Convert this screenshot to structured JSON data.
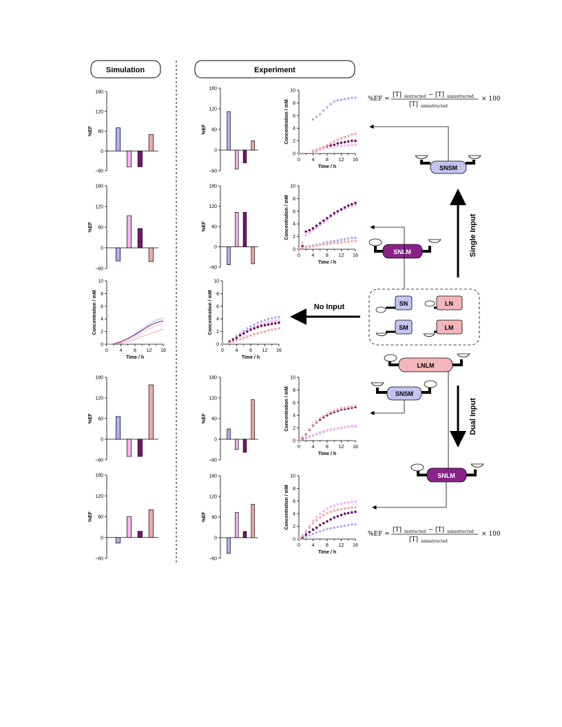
{
  "headers": {
    "simulation": "Simulation",
    "experiment": "Experiment"
  },
  "colors": {
    "SN": "#b8b8ee",
    "LN": "#f4b6ba",
    "SM": "#b8b8ee",
    "LM": "#f4b6ba",
    "SNSM": "#c4c4f0",
    "SNLM": "#8a2389",
    "LNLM": "#f4b6ba",
    "bar_SN": "#b0b0ea",
    "bar_LN": "#f6b4ee",
    "bar_SM": "#7b1474",
    "bar_LM": "#f2a8a8",
    "line_SN": "#b0b0ea",
    "line_LN": "#f6b4ee",
    "line_SM": "#6a0f66",
    "line_LM": "#f2a8a8"
  },
  "axis_labels": {
    "ef": "%EF",
    "conc": "Concentration / mM",
    "time": "Time / h"
  },
  "ef_ticks": [
    "180",
    "120",
    "60",
    "0",
    "−60"
  ],
  "conc_ticks": [
    "10",
    "8",
    "6",
    "4",
    "2",
    "0"
  ],
  "time_ticks": [
    "0",
    "4",
    "8",
    "12",
    "16"
  ],
  "scheme": {
    "inputs": {
      "single": "Single Input",
      "none": "No Input",
      "dual": "Dual Input"
    },
    "species": {
      "SN": "SN",
      "LN": "LN",
      "SM": "SM",
      "LM": "LM"
    },
    "complexes": {
      "snsm_top": "SNSM",
      "snlm_mid": "SNLM",
      "lnlm": "LNLM",
      "snsm_low": "SNSM",
      "snlm_bot": "SNLM"
    },
    "equation": {
      "lhs": "%EF =",
      "num_a": "[T]",
      "sub_instructed": "instructed",
      "minus": "−",
      "num_b": "[T]",
      "sub_uninstructed": "uninstructed",
      "den": "[T]",
      "times": "× 100"
    }
  },
  "chart_data": [
    {
      "id": "sim_ef_row1",
      "type": "bar",
      "categories": [
        "SN",
        "LN",
        "SM",
        "LM"
      ],
      "values": [
        70,
        -48,
        -48,
        50
      ],
      "ylim": [
        -60,
        180
      ],
      "ylabel": "%EF"
    },
    {
      "id": "sim_ef_row2",
      "type": "bar",
      "categories": [
        "SN",
        "LN",
        "SM",
        "LM"
      ],
      "values": [
        -38,
        93,
        56,
        -40
      ],
      "ylim": [
        -60,
        180
      ],
      "ylabel": "%EF"
    },
    {
      "id": "sim_conc_row3",
      "type": "line",
      "xlim": [
        0,
        16
      ],
      "ylim": [
        0,
        10
      ],
      "xlabel": "Time / h",
      "ylabel": "Concentration / mM",
      "x": [
        0,
        2,
        4,
        6,
        8,
        10,
        12,
        14,
        16
      ],
      "series": [
        {
          "name": "SN",
          "values": [
            0,
            0.1,
            0.4,
            0.9,
            1.6,
            2.4,
            3.2,
            3.8,
            4.1
          ]
        },
        {
          "name": "LN",
          "values": [
            0,
            0.1,
            0.3,
            0.7,
            1.2,
            1.8,
            2.4,
            2.9,
            3.2
          ]
        },
        {
          "name": "SM",
          "values": [
            0,
            0.1,
            0.4,
            0.9,
            1.5,
            2.2,
            2.9,
            3.4,
            3.7
          ]
        },
        {
          "name": "LM",
          "values": [
            0,
            0.1,
            0.2,
            0.4,
            0.8,
            1.2,
            1.6,
            2.0,
            2.4
          ]
        }
      ]
    },
    {
      "id": "sim_ef_row4",
      "type": "bar",
      "categories": [
        "SN",
        "LN",
        "SM",
        "LM"
      ],
      "values": [
        66,
        -50,
        -50,
        158
      ],
      "ylim": [
        -60,
        180
      ],
      "ylabel": "%EF"
    },
    {
      "id": "sim_ef_row5",
      "type": "bar",
      "categories": [
        "SN",
        "LN",
        "SM",
        "LM"
      ],
      "values": [
        -16,
        60,
        18,
        80
      ],
      "ylim": [
        -60,
        180
      ],
      "ylabel": "%EF"
    },
    {
      "id": "exp_ef_row1",
      "type": "bar",
      "categories": [
        "SN",
        "LN",
        "SM",
        "LM"
      ],
      "values": [
        112,
        -55,
        -37,
        27
      ],
      "ylim": [
        -60,
        180
      ],
      "ylabel": "%EF"
    },
    {
      "id": "exp_ef_row2",
      "type": "bar",
      "categories": [
        "SN",
        "LN",
        "SM",
        "LM"
      ],
      "values": [
        -53,
        102,
        102,
        -50
      ],
      "ylim": [
        -60,
        180
      ],
      "ylabel": "%EF"
    },
    {
      "id": "exp_ef_row4",
      "type": "bar",
      "categories": [
        "SN",
        "LN",
        "SM",
        "LM"
      ],
      "values": [
        30,
        -30,
        -38,
        115
      ],
      "ylim": [
        -60,
        180
      ],
      "ylabel": "%EF"
    },
    {
      "id": "exp_ef_row5",
      "type": "bar",
      "categories": [
        "SN",
        "LN",
        "SM",
        "LM"
      ],
      "values": [
        -46,
        73,
        18,
        97
      ],
      "ylim": [
        -60,
        180
      ],
      "ylabel": "%EF"
    },
    {
      "id": "exp_conc_row1",
      "type": "scatter",
      "xlim": [
        0,
        16
      ],
      "ylim": [
        0,
        10
      ],
      "xlabel": "Time / h",
      "ylabel": "Concentration / mM",
      "x": [
        0,
        4,
        5,
        6,
        7,
        8,
        9,
        10,
        11,
        12,
        13,
        14,
        15,
        16
      ],
      "series": [
        {
          "name": "SN",
          "values": [
            0.1,
            5.4,
            5.8,
            6.2,
            6.8,
            7.3,
            7.8,
            8.2,
            8.4,
            8.5,
            8.6,
            8.7,
            8.8,
            8.8
          ]
        },
        {
          "name": "LN",
          "values": [
            0.1,
            0.2,
            0.4,
            0.6,
            0.8,
            0.9,
            1.0,
            1.1,
            1.2,
            1.2,
            1.3,
            1.3,
            1.4,
            1.4
          ]
        },
        {
          "name": "SM",
          "values": [
            0.1,
            0.4,
            0.6,
            0.8,
            1.0,
            1.2,
            1.3,
            1.4,
            1.6,
            1.7,
            1.8,
            1.9,
            2.0,
            2.0
          ]
        },
        {
          "name": "LM",
          "values": [
            0.1,
            0.4,
            0.6,
            0.8,
            1.0,
            1.3,
            1.6,
            1.9,
            2.2,
            2.4,
            2.6,
            2.8,
            3.0,
            3.1
          ]
        }
      ]
    },
    {
      "id": "exp_conc_row2",
      "type": "scatter",
      "xlim": [
        0,
        16
      ],
      "ylim": [
        0,
        10
      ],
      "xlabel": "Time / h",
      "ylabel": "Concentration / mM",
      "x": [
        0,
        1,
        2,
        3,
        4,
        5,
        6,
        7,
        8,
        9,
        10,
        11,
        12,
        13,
        14,
        15,
        16
      ],
      "series": [
        {
          "name": "SN",
          "values": [
            0.1,
            0.3,
            0.4,
            0.5,
            0.6,
            0.7,
            0.8,
            1.0,
            1.1,
            1.2,
            1.3,
            1.4,
            1.5,
            1.6,
            1.7,
            1.8,
            1.8
          ]
        },
        {
          "name": "LN",
          "values": [
            0.1,
            1.0,
            2.2,
            2.6,
            3.0,
            3.4,
            3.8,
            4.2,
            4.6,
            5.0,
            5.4,
            5.8,
            6.1,
            6.4,
            6.6,
            6.8,
            7.0
          ]
        },
        {
          "name": "SM",
          "values": [
            0.1,
            0.5,
            2.8,
            3.0,
            3.3,
            3.7,
            4.1,
            4.5,
            4.9,
            5.3,
            5.7,
            6.0,
            6.3,
            6.6,
            6.9,
            7.1,
            7.3
          ]
        },
        {
          "name": "LM",
          "values": [
            0.1,
            0.2,
            0.3,
            0.4,
            0.5,
            0.6,
            0.7,
            0.8,
            0.8,
            0.9,
            1.0,
            1.0,
            1.1,
            1.2,
            1.2,
            1.3,
            1.3
          ]
        }
      ]
    },
    {
      "id": "exp_conc_row3",
      "type": "scatter",
      "xlim": [
        0,
        16
      ],
      "ylim": [
        0,
        10
      ],
      "xlabel": "Time / h",
      "ylabel": "Concentration / mM",
      "x": [
        0,
        2,
        3,
        4,
        5,
        6,
        7,
        8,
        9,
        10,
        11,
        12,
        13,
        14,
        15,
        16
      ],
      "series": [
        {
          "name": "SN",
          "values": [
            0.1,
            0.5,
            0.9,
            1.3,
            1.7,
            2.1,
            2.5,
            2.8,
            3.1,
            3.4,
            3.6,
            3.8,
            4.0,
            4.1,
            4.2,
            4.3
          ]
        },
        {
          "name": "LN",
          "values": [
            0.1,
            0.4,
            0.8,
            1.1,
            1.5,
            1.8,
            2.1,
            2.4,
            2.7,
            2.9,
            3.1,
            3.3,
            3.5,
            3.6,
            3.7,
            3.8
          ]
        },
        {
          "name": "SM",
          "values": [
            0.1,
            0.4,
            0.7,
            1.0,
            1.4,
            1.7,
            2.0,
            2.3,
            2.5,
            2.7,
            2.9,
            3.0,
            3.1,
            3.2,
            3.3,
            3.4
          ]
        },
        {
          "name": "LM",
          "values": [
            0.1,
            0.2,
            0.4,
            0.6,
            0.8,
            1.0,
            1.2,
            1.4,
            1.6,
            1.7,
            1.9,
            2.0,
            2.2,
            2.3,
            2.4,
            2.5
          ]
        }
      ]
    },
    {
      "id": "exp_conc_row4",
      "type": "scatter",
      "xlim": [
        0,
        16
      ],
      "ylim": [
        0,
        10
      ],
      "xlabel": "Time / h",
      "ylabel": "Concentration / mM",
      "x": [
        0,
        1,
        2,
        3,
        4,
        5,
        6,
        7,
        8,
        9,
        10,
        11,
        12,
        13,
        14,
        15,
        16
      ],
      "series": [
        {
          "name": "SN",
          "values": [
            0.1,
            0.2,
            0.4,
            0.6,
            0.8,
            1.0,
            1.2,
            1.4,
            1.6,
            1.7,
            1.8,
            1.9,
            2.0,
            2.1,
            2.2,
            2.3,
            2.3
          ]
        },
        {
          "name": "LN",
          "values": [
            0.1,
            0.3,
            0.5,
            0.7,
            0.9,
            1.1,
            1.3,
            1.5,
            1.6,
            1.7,
            1.8,
            1.9,
            2.0,
            2.1,
            2.2,
            2.2,
            2.2
          ]
        },
        {
          "name": "SM",
          "values": [
            0.1,
            0.4,
            1.0,
            1.7,
            2.4,
            2.9,
            3.3,
            3.7,
            4.0,
            4.3,
            4.5,
            4.7,
            4.9,
            5.0,
            5.1,
            5.2,
            5.3
          ]
        },
        {
          "name": "LM",
          "values": [
            0.1,
            0.5,
            1.1,
            1.8,
            2.5,
            3.0,
            3.5,
            3.9,
            4.2,
            4.5,
            4.7,
            4.9,
            5.1,
            5.2,
            5.3,
            5.4,
            5.5
          ]
        }
      ]
    },
    {
      "id": "exp_conc_row5",
      "type": "scatter",
      "xlim": [
        0,
        16
      ],
      "ylim": [
        0,
        10
      ],
      "xlabel": "Time / h",
      "ylabel": "Concentration / mM",
      "x": [
        0,
        1,
        2,
        3,
        4,
        5,
        6,
        7,
        8,
        9,
        10,
        11,
        12,
        13,
        14,
        15,
        16
      ],
      "series": [
        {
          "name": "SN",
          "values": [
            0.1,
            0.2,
            0.4,
            0.6,
            0.8,
            1.0,
            1.2,
            1.4,
            1.6,
            1.7,
            1.8,
            1.9,
            2.0,
            2.1,
            2.2,
            2.3,
            2.3
          ]
        },
        {
          "name": "LN",
          "values": [
            0.1,
            0.6,
            1.3,
            2.1,
            2.9,
            3.5,
            4.0,
            4.4,
            4.8,
            5.1,
            5.3,
            5.5,
            5.6,
            5.7,
            5.8,
            5.9,
            5.9
          ]
        },
        {
          "name": "SM",
          "values": [
            0.1,
            0.3,
            0.7,
            1.1,
            1.5,
            1.8,
            2.2,
            2.5,
            2.8,
            3.1,
            3.4,
            3.6,
            3.8,
            4.0,
            4.1,
            4.2,
            4.3
          ]
        },
        {
          "name": "LM",
          "values": [
            0.1,
            0.5,
            1.1,
            1.8,
            2.5,
            3.0,
            3.4,
            3.8,
            4.1,
            4.3,
            4.5,
            4.6,
            4.7,
            4.8,
            4.9,
            5.0,
            5.0
          ]
        }
      ]
    }
  ]
}
